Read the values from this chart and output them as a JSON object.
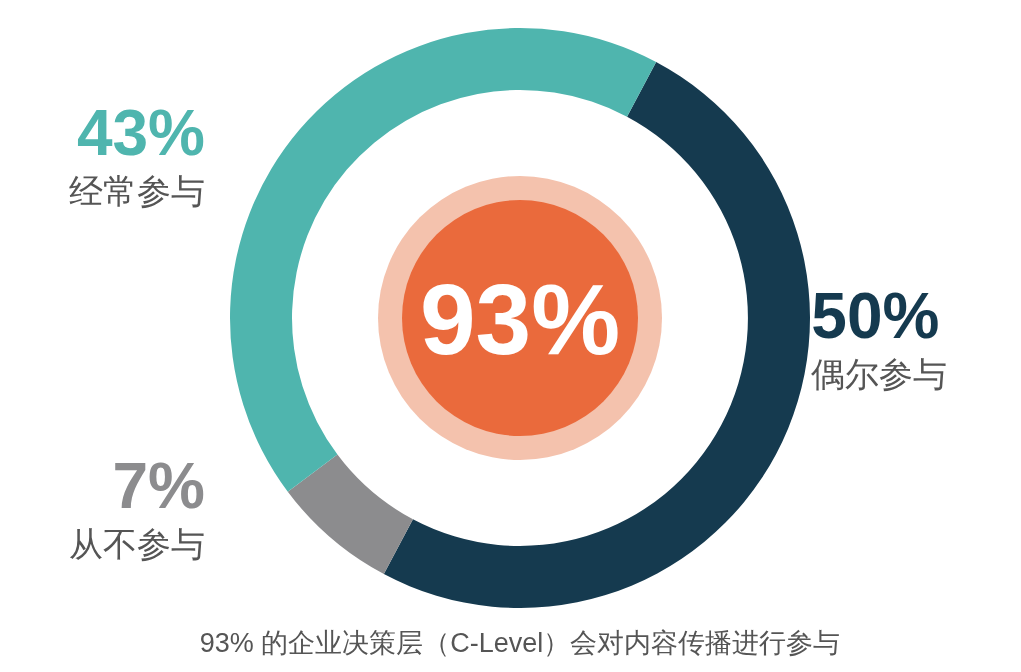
{
  "chart_data": {
    "type": "donut",
    "categories": [
      "偶尔参与",
      "从不参与",
      "经常参与"
    ],
    "values": [
      50,
      7,
      43
    ],
    "colors": [
      "#153a4f",
      "#8c8c8e",
      "#4fb5ae"
    ],
    "value_labels": [
      "50%",
      "7%",
      "43%"
    ],
    "annotations": [
      "93%",
      "93% 的企业决策层（C-Level）会对内容传播进行参与"
    ]
  }
}
